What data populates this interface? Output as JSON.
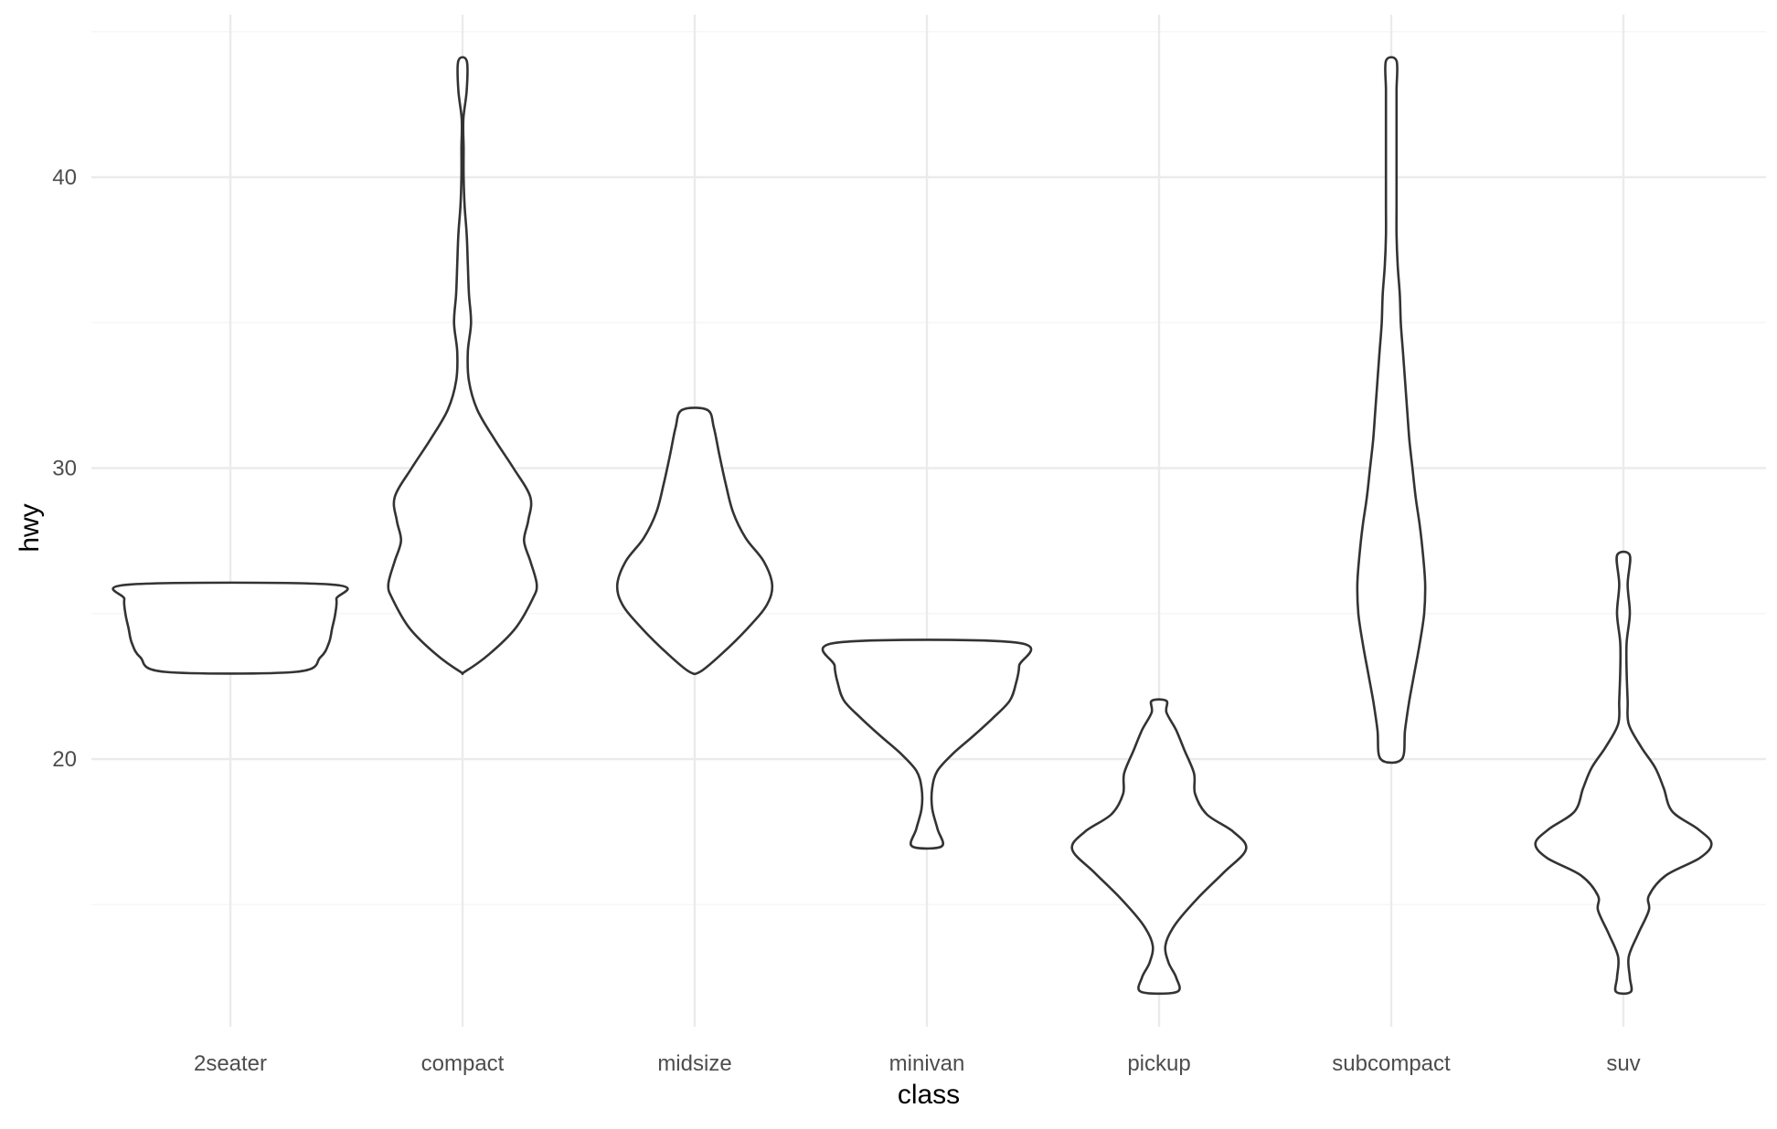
{
  "chart_data": {
    "type": "violin",
    "title": "",
    "xlabel": "class",
    "ylabel": "hwy",
    "categories": [
      "2seater",
      "compact",
      "midsize",
      "minivan",
      "pickup",
      "subcompact",
      "suv"
    ],
    "ylim": [
      10.4,
      45.6
    ],
    "yticks": [
      20,
      30,
      40
    ],
    "ytick_labels": [
      "20",
      "30",
      "40"
    ],
    "yminor": [
      15,
      25,
      35,
      45
    ],
    "grid": true,
    "legend": "none",
    "colors": {
      "outline": "#333333",
      "fill": "#ffffff",
      "grid_major": "#ebebeb",
      "grid_minor": "#f4f4f4",
      "tick_text": "#4d4d4d",
      "title_text": "#000000"
    },
    "violins": [
      {
        "category": "2seater",
        "range": [
          23,
          26
        ],
        "profile": [
          [
            23,
            0.62
          ],
          [
            23.5,
            0.85
          ],
          [
            24,
            0.93
          ],
          [
            24.5,
            0.96
          ],
          [
            25,
            0.99
          ],
          [
            25.5,
            1.0
          ],
          [
            26,
            0.95
          ]
        ]
      },
      {
        "category": "compact",
        "range": [
          23,
          44
        ],
        "profile": [
          [
            23,
            0.02
          ],
          [
            23.6,
            0.25
          ],
          [
            24.5,
            0.5
          ],
          [
            25.5,
            0.66
          ],
          [
            26,
            0.7
          ],
          [
            26.8,
            0.64
          ],
          [
            27.5,
            0.58
          ],
          [
            28.2,
            0.62
          ],
          [
            29,
            0.64
          ],
          [
            30,
            0.48
          ],
          [
            31,
            0.3
          ],
          [
            32,
            0.14
          ],
          [
            33,
            0.06
          ],
          [
            34,
            0.05
          ],
          [
            35,
            0.08
          ],
          [
            36,
            0.06
          ],
          [
            37,
            0.05
          ],
          [
            38,
            0.04
          ],
          [
            39,
            0.02
          ],
          [
            40,
            0.01
          ],
          [
            41,
            0.01
          ],
          [
            42,
            0.008
          ],
          [
            43,
            0.04
          ],
          [
            44,
            0.04
          ]
        ]
      },
      {
        "category": "midsize",
        "range": [
          23,
          32
        ],
        "profile": [
          [
            23,
            0.05
          ],
          [
            23.6,
            0.25
          ],
          [
            24.5,
            0.5
          ],
          [
            25.3,
            0.68
          ],
          [
            26,
            0.73
          ],
          [
            26.8,
            0.65
          ],
          [
            27.6,
            0.48
          ],
          [
            28.5,
            0.36
          ],
          [
            29.5,
            0.29
          ],
          [
            30.5,
            0.23
          ],
          [
            31.4,
            0.18
          ],
          [
            32,
            0.12
          ]
        ]
      },
      {
        "category": "minivan",
        "range": [
          17,
          24
        ],
        "profile": [
          [
            17,
            0.14
          ],
          [
            17.6,
            0.1
          ],
          [
            18.3,
            0.05
          ],
          [
            19,
            0.05
          ],
          [
            19.6,
            0.1
          ],
          [
            20.2,
            0.25
          ],
          [
            20.8,
            0.44
          ],
          [
            21.4,
            0.62
          ],
          [
            22,
            0.78
          ],
          [
            22.6,
            0.84
          ],
          [
            23.2,
            0.87
          ],
          [
            24,
            0.85
          ]
        ]
      },
      {
        "category": "pickup",
        "range": [
          12,
          22
        ],
        "profile": [
          [
            12,
            0.17
          ],
          [
            12.5,
            0.16
          ],
          [
            13,
            0.09
          ],
          [
            13.6,
            0.06
          ],
          [
            14.3,
            0.15
          ],
          [
            15.2,
            0.36
          ],
          [
            16.1,
            0.61
          ],
          [
            16.9,
            0.82
          ],
          [
            17.5,
            0.7
          ],
          [
            18.1,
            0.45
          ],
          [
            18.8,
            0.34
          ],
          [
            19.5,
            0.33
          ],
          [
            20.3,
            0.24
          ],
          [
            21,
            0.16
          ],
          [
            21.6,
            0.07
          ],
          [
            22,
            0.07
          ]
        ]
      },
      {
        "category": "subcompact",
        "range": [
          20,
          44
        ],
        "profile": [
          [
            20,
            0.1
          ],
          [
            21,
            0.13
          ],
          [
            22,
            0.17
          ],
          [
            23,
            0.22
          ],
          [
            24,
            0.27
          ],
          [
            25,
            0.31
          ],
          [
            26,
            0.32
          ],
          [
            27,
            0.3
          ],
          [
            28,
            0.27
          ],
          [
            29,
            0.23
          ],
          [
            30,
            0.2
          ],
          [
            31,
            0.17
          ],
          [
            32,
            0.15
          ],
          [
            33,
            0.13
          ],
          [
            34,
            0.11
          ],
          [
            35,
            0.09
          ],
          [
            36,
            0.08
          ],
          [
            37,
            0.06
          ],
          [
            38,
            0.05
          ],
          [
            39,
            0.05
          ],
          [
            40,
            0.05
          ],
          [
            41,
            0.05
          ],
          [
            42,
            0.05
          ],
          [
            43,
            0.05
          ],
          [
            44,
            0.05
          ]
        ]
      },
      {
        "category": "suv",
        "range": [
          12,
          27
        ],
        "profile": [
          [
            12,
            0.07
          ],
          [
            12.5,
            0.06
          ],
          [
            13.2,
            0.05
          ],
          [
            14,
            0.14
          ],
          [
            14.8,
            0.24
          ],
          [
            15.3,
            0.24
          ],
          [
            16,
            0.4
          ],
          [
            16.6,
            0.72
          ],
          [
            17.1,
            0.83
          ],
          [
            17.6,
            0.7
          ],
          [
            18.2,
            0.46
          ],
          [
            19,
            0.38
          ],
          [
            19.7,
            0.3
          ],
          [
            20.4,
            0.17
          ],
          [
            21.2,
            0.05
          ],
          [
            22,
            0.04
          ],
          [
            23,
            0.03
          ],
          [
            24,
            0.03
          ],
          [
            25,
            0.06
          ],
          [
            26,
            0.04
          ],
          [
            27,
            0.06
          ]
        ]
      }
    ]
  }
}
